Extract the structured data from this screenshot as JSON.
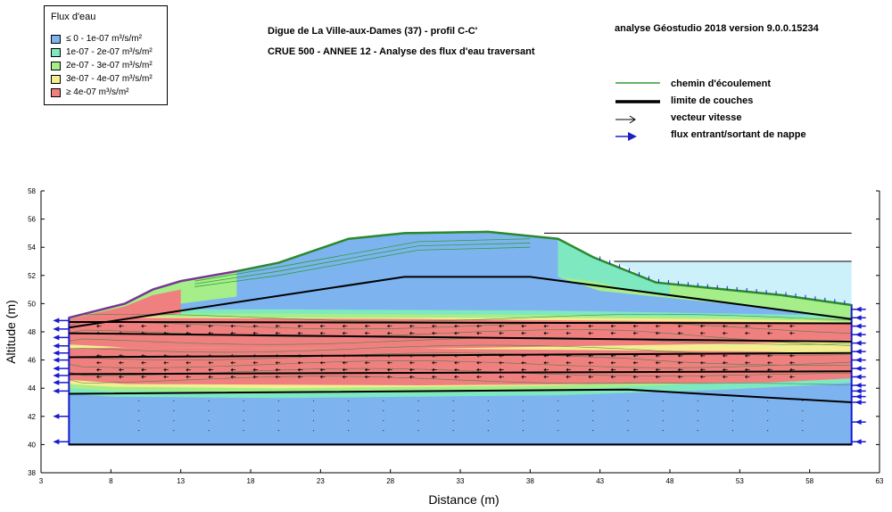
{
  "header": {
    "title_line1": "Digue de La Ville-aux-Dames (37) - profil C-C'",
    "title_line2": "CRUE 500 - ANNEE  12    - Analyse des flux d'eau traversant",
    "software": "analyse Géostudio 2018 version 9.0.0.15234"
  },
  "legend": {
    "title": "Flux d'eau",
    "items": [
      {
        "label": "≤ 0 - 1e-07 m³/s/m²",
        "color": "#7db4f0"
      },
      {
        "label": "1e-07 - 2e-07 m³/s/m²",
        "color": "#7ee8c0"
      },
      {
        "label": "2e-07 - 3e-07 m³/s/m²",
        "color": "#a6ee8a"
      },
      {
        "label": "3e-07 - 4e-07 m³/s/m²",
        "color": "#f5ee90"
      },
      {
        "label": "≥ 4e-07 m³/s/m²",
        "color": "#f08080"
      }
    ]
  },
  "key": {
    "items": [
      {
        "label": "chemin d'écoulement",
        "symbol": "green-line",
        "color": "#2e9e3a"
      },
      {
        "label": "limite de couches",
        "symbol": "thick-black-line",
        "color": "#000000"
      },
      {
        "label": "vecteur vitesse",
        "symbol": "arrow-outline",
        "color": "#000000"
      },
      {
        "label": "flux entrant/sortant de nappe",
        "symbol": "arrow-filled",
        "color": "#2020c0"
      }
    ]
  },
  "chart_data": {
    "type": "area",
    "title": "",
    "xlabel": "Distance (m)",
    "ylabel": "Altitude (m)",
    "xlim": [
      3,
      63
    ],
    "ylim": [
      38,
      58
    ],
    "xticks": [
      3,
      8,
      13,
      18,
      23,
      28,
      33,
      38,
      43,
      48,
      53,
      58,
      63
    ],
    "yticks": [
      38,
      40,
      42,
      44,
      46,
      48,
      50,
      52,
      54,
      56,
      58
    ],
    "domain_x": [
      5,
      61
    ],
    "bottom_y": 40,
    "ground_surface": {
      "x": [
        5,
        9,
        11,
        13,
        17,
        20,
        25,
        29,
        35,
        40,
        42.5,
        47,
        52,
        56,
        61
      ],
      "y": [
        49.0,
        50.0,
        51.0,
        51.6,
        52.3,
        52.9,
        54.6,
        55.0,
        55.1,
        54.6,
        53.3,
        51.5,
        51.0,
        50.6,
        49.9
      ]
    },
    "water_levels": [
      {
        "x": [
          39,
          61
        ],
        "y": 55.0,
        "color": "#000000"
      },
      {
        "x": [
          44,
          61
        ],
        "y": 53.0,
        "color": "#000000"
      }
    ],
    "layer_limits": [
      {
        "x": [
          5,
          29,
          38,
          61
        ],
        "y": [
          48.3,
          51.9,
          51.9,
          48.9
        ]
      },
      {
        "x": [
          5,
          61
        ],
        "y": [
          48.7,
          48.6
        ]
      },
      {
        "x": [
          5,
          61
        ],
        "y": [
          47.9,
          47.3
        ]
      },
      {
        "x": [
          5,
          61
        ],
        "y": [
          46.2,
          46.5
        ]
      },
      {
        "x": [
          5,
          61
        ],
        "y": [
          45.0,
          45.2
        ]
      },
      {
        "x": [
          5,
          45,
          61
        ],
        "y": [
          43.6,
          43.9,
          43.0
        ]
      }
    ],
    "flux_zones": [
      {
        "class": "≥ 4e-07 m³/s/m²",
        "x": [
          5,
          61
        ],
        "y_top": 48.8,
        "y_bottom": 47.6
      },
      {
        "class": "≥ 4e-07 m³/s/m²",
        "x": [
          5,
          61
        ],
        "y_top": 46.8,
        "y_bottom": 44.3
      }
    ]
  }
}
